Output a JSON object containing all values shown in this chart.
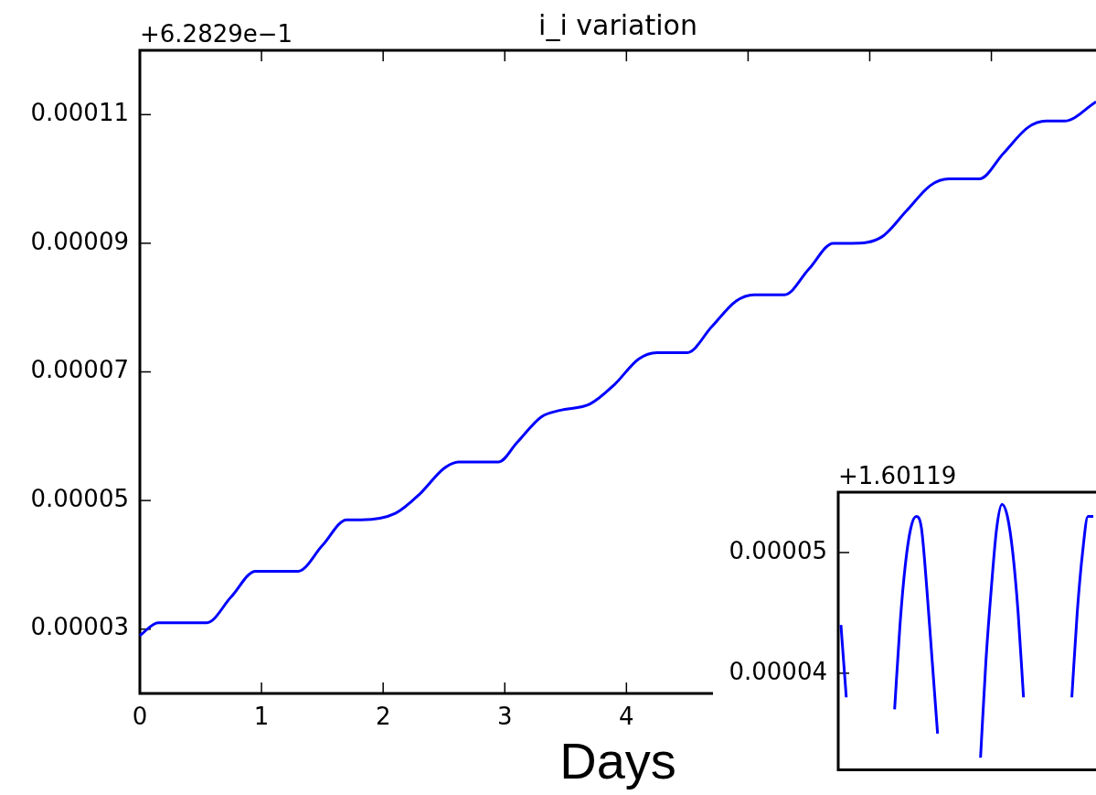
{
  "chart_data": [
    {
      "type": "line",
      "title": "i_i variation",
      "xlabel": "Days",
      "annotations": [
        "+6.2829e−1"
      ],
      "marker": "none",
      "color": "#0000ff",
      "x": [
        0,
        0.15,
        0.3,
        0.55,
        0.75,
        0.95,
        1.05,
        1.3,
        1.5,
        1.7,
        1.82,
        2.1,
        2.3,
        2.5,
        2.62,
        2.95,
        3.1,
        3.3,
        3.45,
        3.7,
        3.9,
        4.1,
        4.25,
        4.5,
        4.7,
        4.9,
        5.05,
        5.3,
        5.5,
        5.7,
        5.85,
        6.1,
        6.3,
        6.5,
        6.65,
        6.9,
        7.1,
        7.3,
        7.45,
        7.6,
        7.86
      ],
      "values": [
        2.9e-05,
        3.1e-05,
        3.1e-05,
        3.1e-05,
        3.5e-05,
        3.9e-05,
        3.9e-05,
        3.9e-05,
        4.3e-05,
        4.7e-05,
        4.7e-05,
        4.8e-05,
        5.1e-05,
        5.5e-05,
        5.6e-05,
        5.6e-05,
        5.9e-05,
        6.3e-05,
        6.4e-05,
        6.5e-05,
        6.8e-05,
        7.2e-05,
        7.3e-05,
        7.3e-05,
        7.7e-05,
        8.1e-05,
        8.2e-05,
        8.2e-05,
        8.6e-05,
        9e-05,
        9e-05,
        9.1e-05,
        9.5e-05,
        9.9e-05,
        0.0001,
        0.0001,
        0.000104,
        0.000108,
        0.000109,
        0.000109,
        0.000112
      ],
      "xlim": [
        0,
        7.86
      ],
      "ylim": [
        2e-05,
        0.00012
      ],
      "xticks": [
        0,
        1,
        2,
        3,
        4,
        {
          "value": 5,
          "label": null
        },
        {
          "value": 6,
          "label": null
        },
        {
          "value": 7,
          "label": null
        }
      ],
      "yticks": [
        {
          "value": 3e-05,
          "label": "0.00003"
        },
        {
          "value": 5e-05,
          "label": "0.00005"
        },
        {
          "value": 7e-05,
          "label": "0.00007"
        },
        {
          "value": 9e-05,
          "label": "0.00009"
        },
        {
          "value": 0.00011,
          "label": "0.00011"
        }
      ]
    },
    {
      "type": "line",
      "annotations": [
        "+1.60119"
      ],
      "marker": "none",
      "color": "#0000ff",
      "tick_labels": "y",
      "categories": [
        null,
        null,
        null,
        null,
        null,
        null,
        null,
        null,
        null,
        null,
        null,
        null,
        null,
        null,
        null,
        null,
        null,
        null,
        null,
        null,
        null,
        null,
        null,
        null,
        null,
        null,
        null,
        null,
        null,
        null,
        null,
        null,
        null,
        null,
        null,
        null,
        null,
        null,
        null,
        null,
        null,
        null,
        null,
        null,
        null,
        null,
        null,
        null
      ],
      "values": [
        4.4e-05,
        3.8e-05,
        null,
        null,
        null,
        null,
        null,
        null,
        null,
        null,
        3.7e-05,
        4.4e-05,
        4.9e-05,
        5.2e-05,
        5.3e-05,
        5.2e-05,
        4.7e-05,
        4.1e-05,
        3.5e-05,
        null,
        null,
        null,
        null,
        null,
        null,
        null,
        3.3e-05,
        4.1e-05,
        4.7e-05,
        5.2e-05,
        5.4e-05,
        5.3e-05,
        5e-05,
        4.5e-05,
        3.8e-05,
        null,
        null,
        null,
        null,
        null,
        null,
        null,
        null,
        3.8e-05,
        4.5e-05,
        5e-05,
        5.3e-05,
        5.3e-05
      ],
      "ylim": [
        3.2e-05,
        5.5e-05
      ],
      "yticks": [
        {
          "value": 4e-05,
          "label": "0.00004"
        },
        {
          "value": 5e-05,
          "label": "0.00005"
        }
      ]
    }
  ]
}
